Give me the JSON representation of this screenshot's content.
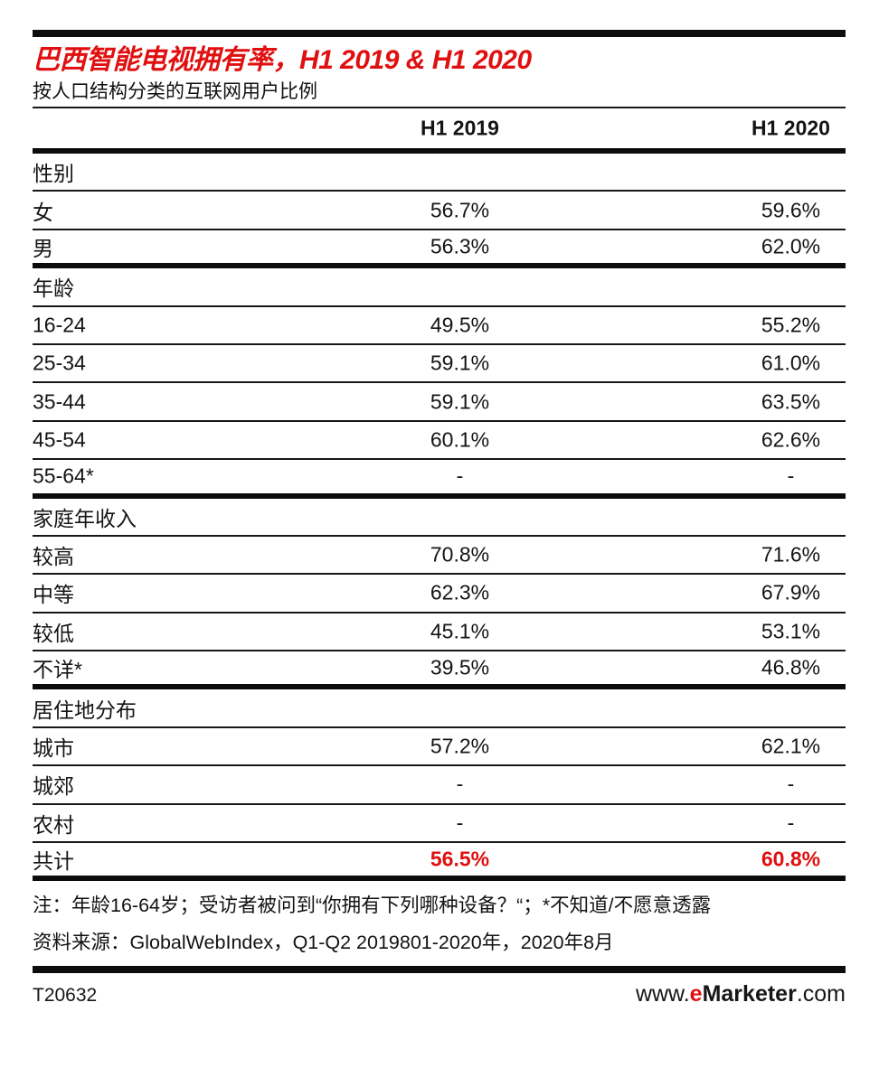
{
  "accent_red": "#e01010",
  "header": {
    "title": "巴西智能电视拥有率，H1 2019 & H1 2020",
    "subtitle": "按人口结构分类的互联网用户比例"
  },
  "chart_data": {
    "type": "table",
    "title": "巴西智能电视拥有率，H1 2019 & H1 2020",
    "subtitle": "按人口结构分类的互联网用户比例",
    "columns": [
      "H1 2019",
      "H1 2020"
    ],
    "sections": [
      {
        "header": "性别",
        "rows": [
          {
            "label": "女",
            "h1_2019": "56.7%",
            "h1_2020": "59.6%"
          },
          {
            "label": "男",
            "h1_2019": "56.3%",
            "h1_2020": "62.0%"
          }
        ]
      },
      {
        "header": "年龄",
        "rows": [
          {
            "label": "16-24",
            "h1_2019": "49.5%",
            "h1_2020": "55.2%"
          },
          {
            "label": "25-34",
            "h1_2019": "59.1%",
            "h1_2020": "61.0%"
          },
          {
            "label": "35-44",
            "h1_2019": "59.1%",
            "h1_2020": "63.5%"
          },
          {
            "label": "45-54",
            "h1_2019": "60.1%",
            "h1_2020": "62.6%"
          },
          {
            "label": "55-64*",
            "h1_2019": "-",
            "h1_2020": "-"
          }
        ]
      },
      {
        "header": "家庭年收入",
        "rows": [
          {
            "label": "较高",
            "h1_2019": "70.8%",
            "h1_2020": "71.6%"
          },
          {
            "label": "中等",
            "h1_2019": "62.3%",
            "h1_2020": "67.9%"
          },
          {
            "label": "较低",
            "h1_2019": "45.1%",
            "h1_2020": "53.1%"
          },
          {
            "label": "不详*",
            "h1_2019": "39.5%",
            "h1_2020": "46.8%"
          }
        ]
      },
      {
        "header": "居住地分布",
        "rows": [
          {
            "label": "城市",
            "h1_2019": "57.2%",
            "h1_2020": "62.1%"
          },
          {
            "label": "城郊",
            "h1_2019": "-",
            "h1_2020": "-"
          },
          {
            "label": "农村",
            "h1_2019": "-",
            "h1_2020": "-"
          }
        ]
      }
    ],
    "total": {
      "label": "共计",
      "h1_2019": "56.5%",
      "h1_2020": "60.8%"
    }
  },
  "notes": {
    "footnote": "注：年龄16-64岁；受访者被问到“你拥有下列哪种设备？“；*不知道/不愿意透露",
    "source": "资料来源：GlobalWebIndex，Q1-Q2 2019801-2020年，2020年8月"
  },
  "footer": {
    "chart_id": "T20632",
    "site_prefix": "www.",
    "site_brand_e": "e",
    "site_brand_rest": "Marketer",
    "site_suffix": ".com"
  }
}
